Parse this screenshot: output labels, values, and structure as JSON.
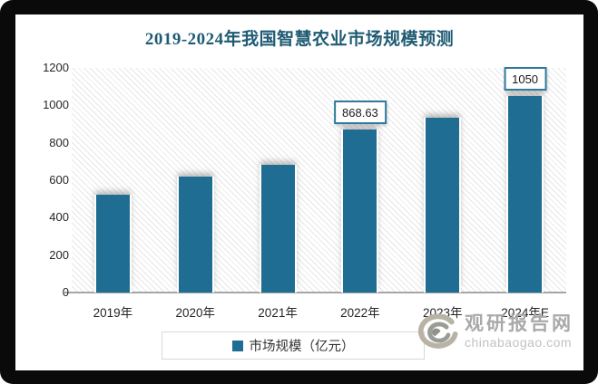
{
  "title": "2019-2024年我国智慧农业市场规模预测",
  "chart_data": {
    "type": "bar",
    "title": "2019-2024年我国智慧农业市场规模预测",
    "categories": [
      "2019年",
      "2020年",
      "2021年",
      "2022年",
      "2023年",
      "2024年E"
    ],
    "series": [
      {
        "name": "市场规模（亿元）",
        "values": [
          525,
          620,
          680,
          868.63,
          935,
          1050
        ]
      }
    ],
    "data_labels": [
      null,
      null,
      null,
      "868.63",
      null,
      "1050"
    ],
    "xlabel": "",
    "ylabel": "",
    "ylim": [
      0,
      1200
    ],
    "y_ticks": [
      0,
      200,
      400,
      600,
      800,
      1000,
      1200
    ],
    "grid": false,
    "legend_position": "bottom",
    "plot_background": "diagonal-hatch"
  },
  "legend": {
    "label": "市场规模（亿元）",
    "swatch_color": "#1f6d92"
  },
  "watermark": {
    "logo_icon": "swirl-logo",
    "site_name": "观研报告网",
    "site_url": "chinabaogao.com"
  },
  "colors": {
    "bar": "#1f6d92",
    "title": "#1f5b73",
    "label_box_border": "#2e7a9d",
    "axis_line": "#a6a6a6",
    "frame": "#0a0a0a",
    "legend_border": "#d9d9d9",
    "watermark_gray": "#a9a9a9"
  }
}
